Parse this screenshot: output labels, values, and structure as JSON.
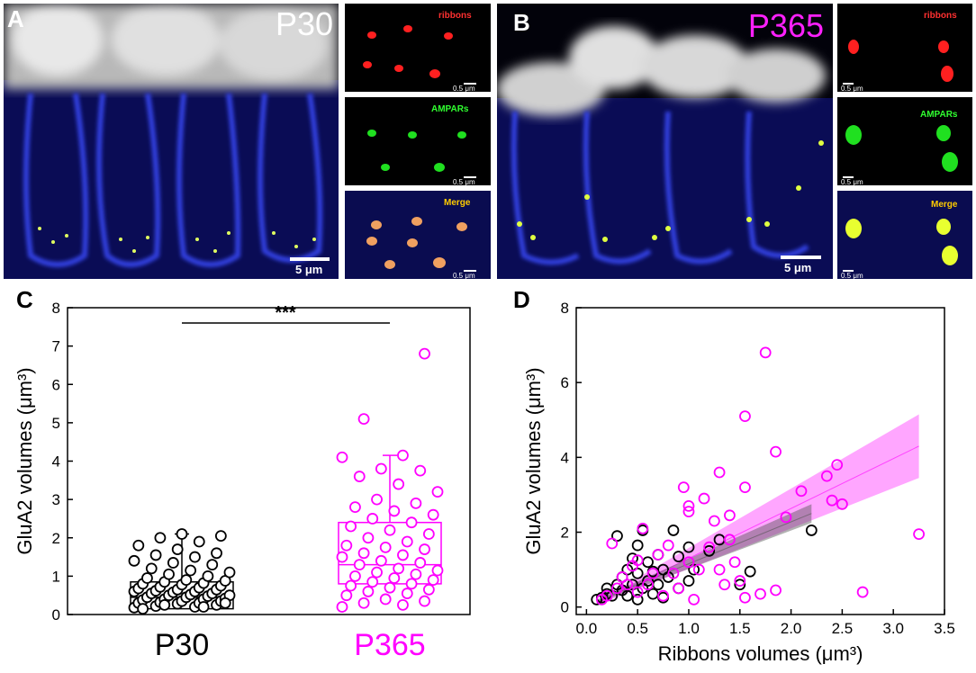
{
  "panels": {
    "a": {
      "letter": "A",
      "stage": "P30",
      "scale_main": "5 μm",
      "scale_inset": "0.5 μm"
    },
    "b": {
      "letter": "B",
      "stage": "P365",
      "scale_main": "5 μm",
      "scale_inset": "0.5 μm"
    },
    "c": {
      "letter": "C"
    },
    "d": {
      "letter": "D"
    }
  },
  "inset_labels": {
    "ribbons": "ribbons",
    "ampars": "AMPARs",
    "merge": "Merge"
  },
  "colors": {
    "p30": "#000000",
    "p365": "#ff00ff",
    "ribbons": "#ff2020",
    "ampars": "#20e020",
    "merge": "#ffcc00",
    "blue_stain": "#2030d0"
  },
  "chart_data": [
    {
      "type": "scatter",
      "panel": "C",
      "ylabel": "GluA2 volumes (μm³)",
      "ylim": [
        0,
        8
      ],
      "yticks": [
        "0",
        "1",
        "2",
        "3",
        "4",
        "5",
        "6",
        "7",
        "8"
      ],
      "categories": [
        "P30",
        "P365"
      ],
      "significance": "***",
      "series": [
        {
          "name": "P30",
          "box": {
            "q1": 0.15,
            "median": 0.45,
            "q3": 0.85,
            "whisker_low": 0.1,
            "whisker_high": 2.1
          },
          "values": [
            0.18,
            0.2,
            0.22,
            0.25,
            0.28,
            0.3,
            0.3,
            0.32,
            0.35,
            0.35,
            0.38,
            0.4,
            0.4,
            0.42,
            0.45,
            0.45,
            0.48,
            0.5,
            0.5,
            0.52,
            0.55,
            0.55,
            0.58,
            0.6,
            0.6,
            0.62,
            0.65,
            0.65,
            0.68,
            0.7,
            0.72,
            0.75,
            0.78,
            0.8,
            0.82,
            0.85,
            0.88,
            0.9,
            0.95,
            1.0,
            1.05,
            1.1,
            1.15,
            1.2,
            1.3,
            1.35,
            1.4,
            1.5,
            1.55,
            1.6,
            1.7,
            1.8,
            1.9,
            2.0,
            2.05,
            2.1,
            0.15,
            0.2,
            0.25,
            0.3
          ]
        },
        {
          "name": "P365",
          "box": {
            "q1": 0.8,
            "median": 1.3,
            "q3": 2.4,
            "whisker_low": 0.15,
            "whisker_high": 4.15
          },
          "values": [
            0.2,
            0.25,
            0.3,
            0.35,
            0.4,
            0.5,
            0.55,
            0.6,
            0.65,
            0.7,
            0.75,
            0.8,
            0.85,
            0.9,
            0.95,
            1.0,
            1.05,
            1.1,
            1.15,
            1.2,
            1.3,
            1.35,
            1.4,
            1.5,
            1.55,
            1.6,
            1.7,
            1.75,
            1.8,
            1.9,
            2.0,
            2.1,
            2.2,
            2.3,
            2.4,
            2.5,
            2.6,
            2.7,
            2.8,
            2.9,
            3.0,
            3.2,
            3.4,
            3.6,
            3.75,
            3.8,
            4.1,
            4.15,
            5.1,
            6.8
          ]
        }
      ]
    },
    {
      "type": "scatter",
      "panel": "D",
      "xlabel": "Ribbons volumes (μm³)",
      "ylabel": "GluA2 volumes (μm³)",
      "xlim": [
        -0.1,
        3.5
      ],
      "ylim": [
        -0.2,
        8
      ],
      "xticks": [
        "0.0",
        "0.5",
        "1.0",
        "1.5",
        "2.0",
        "2.5",
        "3.0",
        "3.5"
      ],
      "yticks": [
        "0",
        "2",
        "4",
        "6",
        "8"
      ],
      "series": [
        {
          "name": "P30",
          "fit": {
            "x0": 0.1,
            "x1": 2.2,
            "y0": 0.15,
            "y1": 2.5
          },
          "points": [
            [
              0.1,
              0.2
            ],
            [
              0.15,
              0.25
            ],
            [
              0.2,
              0.35
            ],
            [
              0.2,
              0.5
            ],
            [
              0.25,
              0.3
            ],
            [
              0.3,
              0.6
            ],
            [
              0.3,
              1.9
            ],
            [
              0.35,
              0.45
            ],
            [
              0.35,
              0.8
            ],
            [
              0.4,
              0.3
            ],
            [
              0.4,
              1.0
            ],
            [
              0.45,
              0.6
            ],
            [
              0.45,
              1.3
            ],
            [
              0.5,
              0.2
            ],
            [
              0.5,
              0.9
            ],
            [
              0.5,
              1.65
            ],
            [
              0.55,
              0.5
            ],
            [
              0.55,
              2.05
            ],
            [
              0.6,
              0.7
            ],
            [
              0.6,
              1.2
            ],
            [
              0.65,
              0.35
            ],
            [
              0.65,
              0.95
            ],
            [
              0.7,
              0.6
            ],
            [
              0.7,
              1.4
            ],
            [
              0.75,
              0.25
            ],
            [
              0.75,
              1.0
            ],
            [
              0.8,
              0.8
            ],
            [
              0.85,
              2.05
            ],
            [
              0.9,
              0.5
            ],
            [
              0.9,
              1.35
            ],
            [
              1.0,
              0.7
            ],
            [
              1.0,
              1.6
            ],
            [
              1.05,
              1.0
            ],
            [
              1.2,
              1.5
            ],
            [
              1.3,
              1.8
            ],
            [
              1.5,
              0.6
            ],
            [
              1.6,
              0.95
            ],
            [
              2.2,
              2.05
            ]
          ]
        },
        {
          "name": "P365",
          "fit": {
            "x0": 0.1,
            "x1": 3.25,
            "y0": 0.1,
            "y1": 4.3
          },
          "points": [
            [
              0.15,
              0.2
            ],
            [
              0.2,
              0.3
            ],
            [
              0.25,
              1.7
            ],
            [
              0.3,
              0.5
            ],
            [
              0.35,
              0.8
            ],
            [
              0.4,
              0.6
            ],
            [
              0.45,
              1.1
            ],
            [
              0.5,
              0.4
            ],
            [
              0.5,
              1.25
            ],
            [
              0.55,
              2.1
            ],
            [
              0.6,
              0.6
            ],
            [
              0.65,
              0.9
            ],
            [
              0.7,
              1.4
            ],
            [
              0.75,
              0.3
            ],
            [
              0.8,
              1.65
            ],
            [
              0.85,
              0.9
            ],
            [
              0.9,
              0.5
            ],
            [
              0.95,
              3.2
            ],
            [
              1.0,
              2.55
            ],
            [
              1.0,
              2.7
            ],
            [
              1.0,
              1.2
            ],
            [
              1.05,
              0.2
            ],
            [
              1.1,
              1.0
            ],
            [
              1.15,
              2.9
            ],
            [
              1.2,
              1.6
            ],
            [
              1.25,
              2.3
            ],
            [
              1.3,
              3.6
            ],
            [
              1.3,
              1.0
            ],
            [
              1.35,
              0.6
            ],
            [
              1.4,
              2.45
            ],
            [
              1.4,
              1.8
            ],
            [
              1.45,
              1.2
            ],
            [
              1.5,
              0.7
            ],
            [
              1.55,
              5.1
            ],
            [
              1.55,
              3.2
            ],
            [
              1.55,
              0.25
            ],
            [
              1.7,
              0.35
            ],
            [
              1.75,
              6.8
            ],
            [
              1.85,
              4.15
            ],
            [
              1.85,
              0.45
            ],
            [
              1.95,
              2.4
            ],
            [
              2.1,
              3.1
            ],
            [
              2.35,
              3.5
            ],
            [
              2.4,
              2.85
            ],
            [
              2.45,
              3.8
            ],
            [
              2.5,
              2.75
            ],
            [
              2.7,
              0.4
            ],
            [
              3.25,
              1.95
            ]
          ]
        }
      ]
    }
  ]
}
